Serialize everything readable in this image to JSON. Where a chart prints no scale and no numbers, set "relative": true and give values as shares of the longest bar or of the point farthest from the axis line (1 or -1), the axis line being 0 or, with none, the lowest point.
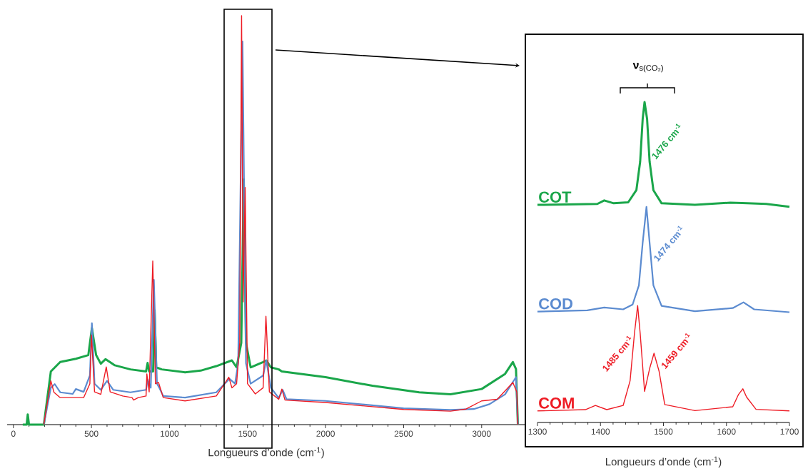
{
  "chart_data": [
    {
      "type": "line",
      "relative": true,
      "xlabel": "Longueurs d’onde (cm$^{-1}$)",
      "xlim": [
        -40,
        3280
      ],
      "xticks": [
        0,
        500,
        1000,
        1500,
        2000,
        2500,
        3000
      ],
      "series": [
        {
          "color": "#1aa64a",
          "x": [
            60,
            85,
            92,
            100,
            195,
            240,
            300,
            400,
            480,
            503,
            530,
            560,
            590,
            650,
            750,
            850,
            860,
            870,
            895,
            905,
            915,
            950,
            1100,
            1200,
            1300,
            1400,
            1430,
            1460,
            1476,
            1490,
            1520,
            1600,
            1620,
            1650,
            1700,
            1720,
            2000,
            2300,
            2600,
            2800,
            3000,
            3150,
            3200,
            3220,
            3232
          ],
          "values": [
            0,
            0,
            0.025,
            0,
            0,
            0.13,
            0.153,
            0.161,
            0.17,
            0.236,
            0.17,
            0.149,
            0.16,
            0.145,
            0.135,
            0.13,
            0.151,
            0.13,
            0.13,
            0.28,
            0.14,
            0.135,
            0.128,
            0.132,
            0.143,
            0.157,
            0.14,
            0.2,
            0.6,
            0.2,
            0.14,
            0.153,
            0.157,
            0.14,
            0.135,
            0.13,
            0.116,
            0.095,
            0.079,
            0.074,
            0.087,
            0.124,
            0.153,
            0.136,
            0
          ]
        },
        {
          "color": "#5b8bd0",
          "x": [
            195,
            240,
            265,
            300,
            380,
            400,
            450,
            490,
            503,
            520,
            560,
            600,
            640,
            750,
            850,
            860,
            880,
            900,
            920,
            935,
            960,
            1100,
            1300,
            1385,
            1420,
            1440,
            1468,
            1490,
            1520,
            1600,
            1620,
            1650,
            1700,
            1725,
            1750,
            2000,
            2500,
            2800,
            2950,
            3050,
            3150,
            3220,
            3232
          ],
          "values": [
            0,
            0.09,
            0.099,
            0.079,
            0.075,
            0.087,
            0.08,
            0.12,
            0.248,
            0.1,
            0.085,
            0.107,
            0.085,
            0.079,
            0.085,
            0.11,
            0.09,
            0.354,
            0.1,
            0.09,
            0.07,
            0.066,
            0.079,
            0.112,
            0.1,
            0.15,
            0.937,
            0.15,
            0.1,
            0.12,
            0.157,
            0.09,
            0.065,
            0.085,
            0.062,
            0.058,
            0.04,
            0.036,
            0.038,
            0.05,
            0.074,
            0.116,
            0
          ]
        },
        {
          "color": "#ee1c25",
          "x": [
            195,
            240,
            260,
            300,
            450,
            490,
            500,
            520,
            560,
            595,
            620,
            700,
            760,
            770,
            800,
            850,
            855,
            870,
            893,
            910,
            930,
            960,
            1100,
            1300,
            1380,
            1400,
            1430,
            1450,
            1462,
            1472,
            1485,
            1500,
            1550,
            1600,
            1618,
            1640,
            1700,
            1720,
            1740,
            2000,
            2500,
            2800,
            2900,
            3000,
            3100,
            3200,
            3225,
            3232
          ],
          "values": [
            0,
            0.107,
            0.079,
            0.066,
            0.066,
            0.1,
            0.219,
            0.08,
            0.074,
            0.141,
            0.08,
            0.07,
            0.066,
            0.06,
            0.066,
            0.07,
            0.124,
            0.08,
            0.4,
            0.1,
            0.103,
            0.066,
            0.058,
            0.07,
            0.116,
            0.09,
            0.1,
            0.2,
            1.0,
            0.3,
            0.58,
            0.1,
            0.075,
            0.09,
            0.265,
            0.08,
            0.062,
            0.087,
            0.06,
            0.054,
            0.037,
            0.033,
            0.038,
            0.058,
            0.062,
            0.103,
            0.08,
            0
          ]
        }
      ]
    },
    {
      "type": "line",
      "relative": true,
      "xlabel": "Longueurs d’onde (cm$^{-1}$)",
      "xlim": [
        1300,
        1700
      ],
      "xticks": [
        1300,
        1400,
        1500,
        1600,
        1700
      ],
      "annotations": [
        "**ν**$_{s(CO₂)}$",
        {
          "text": "1476 cm$^{-1}$",
          "x": 1478,
          "y": 0.814
        },
        {
          "text": "1474 cm$^{-1}$",
          "x": 1481,
          "y": 0.495
        },
        {
          "text": "1485 cm$^{-1}$",
          "x": 1454,
          "y": 0.279
        },
        {
          "text": "1459 cm$^{-1}$",
          "x": 1493,
          "y": 0.16
        }
      ],
      "series": [
        {
          "name": "COT",
          "color": "#1aa64a",
          "x": [
            1300,
            1395,
            1406,
            1421,
            1444,
            1457,
            1463,
            1467,
            1470,
            1474,
            1478,
            1484,
            1497,
            1550,
            1606,
            1625,
            1663,
            1700
          ],
          "values": [
            0.679,
            0.682,
            0.693,
            0.684,
            0.687,
            0.725,
            0.814,
            0.947,
            1.0,
            0.947,
            0.814,
            0.725,
            0.684,
            0.679,
            0.686,
            0.685,
            0.682,
            0.673
          ]
        },
        {
          "name": "COD",
          "color": "#5b8bd0",
          "x": [
            1300,
            1379,
            1406,
            1436,
            1451,
            1461,
            1467,
            1473,
            1478,
            1484,
            1497,
            1550,
            1610,
            1627,
            1644,
            1700
          ],
          "values": [
            0.346,
            0.35,
            0.359,
            0.353,
            0.368,
            0.428,
            0.561,
            0.673,
            0.561,
            0.428,
            0.364,
            0.347,
            0.357,
            0.375,
            0.353,
            0.344
          ]
        },
        {
          "name": "COM",
          "color": "#ee1c25",
          "x": [
            1300,
            1376,
            1392,
            1410,
            1436,
            1447,
            1454,
            1459,
            1463,
            1470,
            1478,
            1485,
            1493,
            1502,
            1550,
            1610,
            1619,
            1626,
            1632,
            1647,
            1700
          ],
          "values": [
            0.036,
            0.04,
            0.053,
            0.04,
            0.053,
            0.13,
            0.279,
            0.365,
            0.279,
            0.097,
            0.168,
            0.216,
            0.16,
            0.056,
            0.037,
            0.049,
            0.087,
            0.105,
            0.079,
            0.041,
            0.036
          ]
        }
      ]
    }
  ]
}
